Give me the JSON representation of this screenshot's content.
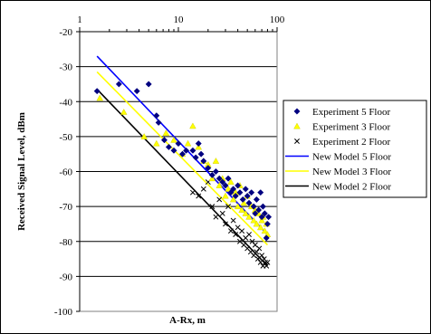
{
  "chart_data": {
    "type": "scatter",
    "title": "",
    "xlabel": "A-Rx, m",
    "ylabel": "Received Signal Level, dBm",
    "x_scale": "log",
    "xlim": [
      1,
      100
    ],
    "ylim": [
      -100,
      -20
    ],
    "x_ticks": [
      {
        "value": 1,
        "label": "1"
      },
      {
        "value": 10,
        "label": "10"
      },
      {
        "value": 100,
        "label": "100"
      }
    ],
    "y_ticks": [
      {
        "value": -20,
        "label": "-20"
      },
      {
        "value": -30,
        "label": "-30"
      },
      {
        "value": -40,
        "label": "-40"
      },
      {
        "value": -50,
        "label": "-50"
      },
      {
        "value": -60,
        "label": "-60"
      },
      {
        "value": -70,
        "label": "-70"
      },
      {
        "value": -80,
        "label": "-80"
      },
      {
        "value": -90,
        "label": "-90"
      },
      {
        "value": -100,
        "label": "-100"
      }
    ],
    "grid": "horizontal",
    "legend_position": "right",
    "series": [
      {
        "name": "Experiment 5 Floor",
        "kind": "scatter",
        "marker": "diamond",
        "color": "#000080",
        "points": [
          [
            1.5,
            -37
          ],
          [
            2.5,
            -35
          ],
          [
            3.8,
            -37
          ],
          [
            5,
            -35
          ],
          [
            6,
            -44
          ],
          [
            6.3,
            -46
          ],
          [
            7.2,
            -51
          ],
          [
            8,
            -53
          ],
          [
            9,
            -54
          ],
          [
            10,
            -52
          ],
          [
            11,
            -55
          ],
          [
            12,
            -54
          ],
          [
            14,
            -54
          ],
          [
            15,
            -56
          ],
          [
            16,
            -52
          ],
          [
            17,
            -55
          ],
          [
            18,
            -57
          ],
          [
            20,
            -59
          ],
          [
            22,
            -61
          ],
          [
            24,
            -60
          ],
          [
            26,
            -62
          ],
          [
            28,
            -63
          ],
          [
            30,
            -64
          ],
          [
            32,
            -62
          ],
          [
            34,
            -66
          ],
          [
            36,
            -65
          ],
          [
            38,
            -67
          ],
          [
            40,
            -64
          ],
          [
            42,
            -66
          ],
          [
            45,
            -68
          ],
          [
            48,
            -65
          ],
          [
            50,
            -67
          ],
          [
            52,
            -69
          ],
          [
            55,
            -66
          ],
          [
            58,
            -70
          ],
          [
            60,
            -72
          ],
          [
            62,
            -68
          ],
          [
            65,
            -71
          ],
          [
            68,
            -66
          ],
          [
            70,
            -73
          ],
          [
            72,
            -70
          ],
          [
            75,
            -72
          ],
          [
            78,
            -79
          ],
          [
            80,
            -75
          ],
          [
            82,
            -73
          ]
        ]
      },
      {
        "name": "Experiment 3 Floor",
        "kind": "scatter",
        "marker": "triangle",
        "color": "#ffff00",
        "points": [
          [
            1.6,
            -39
          ],
          [
            2.8,
            -43
          ],
          [
            4.5,
            -50
          ],
          [
            6,
            -52
          ],
          [
            7.5,
            -49
          ],
          [
            9,
            -51
          ],
          [
            11,
            -55
          ],
          [
            12.5,
            -52
          ],
          [
            14,
            -47
          ],
          [
            16,
            -53
          ],
          [
            18,
            -57
          ],
          [
            20,
            -58
          ],
          [
            22,
            -62
          ],
          [
            24,
            -57
          ],
          [
            26,
            -64
          ],
          [
            28,
            -62
          ],
          [
            30,
            -67
          ],
          [
            32,
            -65
          ],
          [
            34,
            -63
          ],
          [
            36,
            -68
          ],
          [
            38,
            -66
          ],
          [
            40,
            -70
          ],
          [
            42,
            -64
          ],
          [
            44,
            -71
          ],
          [
            46,
            -69
          ],
          [
            48,
            -72
          ],
          [
            50,
            -67
          ],
          [
            52,
            -73
          ],
          [
            55,
            -70
          ],
          [
            58,
            -74
          ],
          [
            60,
            -71
          ],
          [
            62,
            -75
          ],
          [
            65,
            -72
          ],
          [
            68,
            -76
          ],
          [
            70,
            -74
          ],
          [
            72,
            -73
          ],
          [
            75,
            -77
          ],
          [
            78,
            -75
          ],
          [
            80,
            -78
          ]
        ]
      },
      {
        "name": "Experiment 2 Floor",
        "kind": "scatter",
        "marker": "x",
        "color": "#000000",
        "points": [
          [
            14,
            -66
          ],
          [
            16,
            -67
          ],
          [
            18,
            -65
          ],
          [
            20,
            -63
          ],
          [
            22,
            -70
          ],
          [
            24,
            -73
          ],
          [
            26,
            -68
          ],
          [
            28,
            -72
          ],
          [
            30,
            -75
          ],
          [
            32,
            -70
          ],
          [
            34,
            -77
          ],
          [
            36,
            -74
          ],
          [
            38,
            -78
          ],
          [
            40,
            -76
          ],
          [
            42,
            -80
          ],
          [
            44,
            -77
          ],
          [
            46,
            -81
          ],
          [
            48,
            -79
          ],
          [
            50,
            -82
          ],
          [
            52,
            -78
          ],
          [
            54,
            -83
          ],
          [
            56,
            -80
          ],
          [
            58,
            -84
          ],
          [
            60,
            -81
          ],
          [
            62,
            -83
          ],
          [
            64,
            -85
          ],
          [
            66,
            -82
          ],
          [
            68,
            -86
          ],
          [
            70,
            -84
          ],
          [
            72,
            -87
          ],
          [
            74,
            -85
          ],
          [
            76,
            -86
          ],
          [
            78,
            -87
          ],
          [
            80,
            -86
          ]
        ]
      },
      {
        "name": "New Model 5 Floor",
        "kind": "line",
        "color": "#0000ff",
        "points": [
          [
            1.5,
            -27
          ],
          [
            80,
            -78
          ]
        ]
      },
      {
        "name": "New Model 3 Floor",
        "kind": "line",
        "color": "#ffff00",
        "points": [
          [
            1.5,
            -31.5
          ],
          [
            80,
            -81
          ]
        ]
      },
      {
        "name": "New Model 2 Floor",
        "kind": "line",
        "color": "#000000",
        "points": [
          [
            1.5,
            -36.5
          ],
          [
            80,
            -87
          ]
        ]
      }
    ]
  }
}
